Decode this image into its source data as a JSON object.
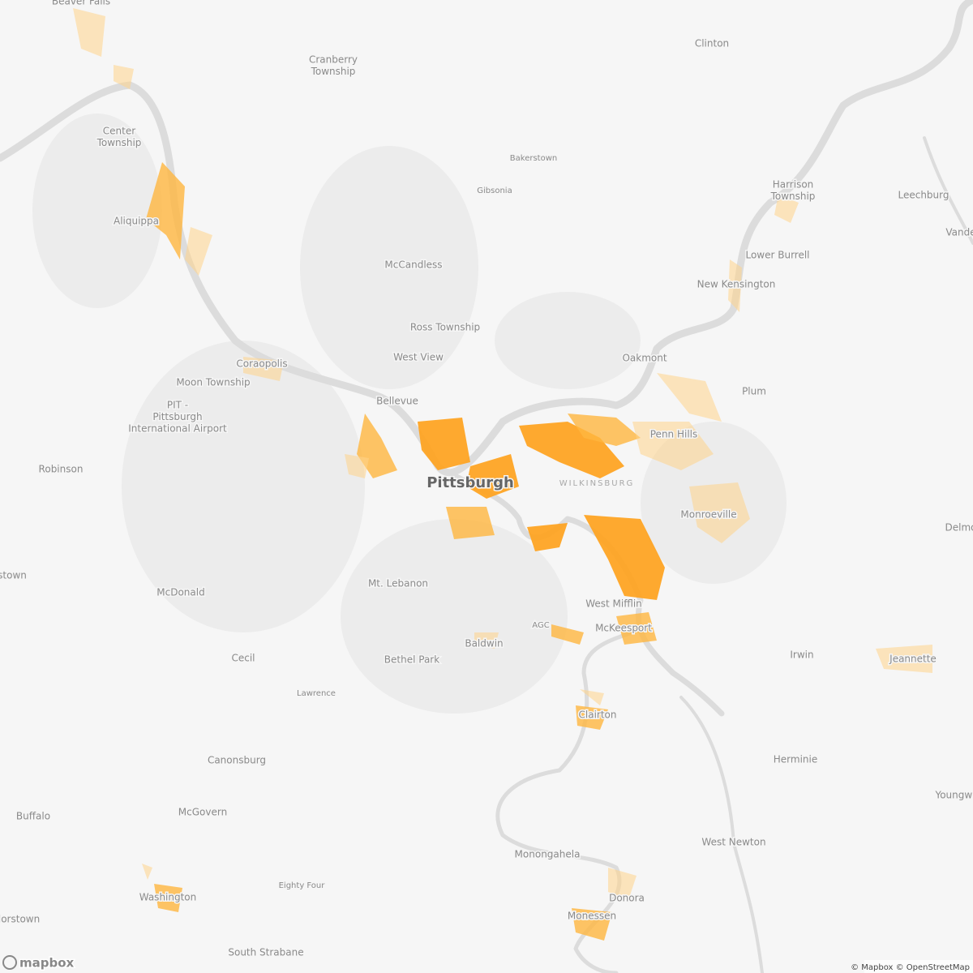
{
  "places": [
    [
      "Beaver Falls"
    ],
    [
      "Cranberry",
      "Township"
    ],
    [
      "Clinton"
    ],
    [
      "Center",
      "Township"
    ],
    [
      "Bakerstown"
    ],
    [
      "Gibsonia"
    ],
    [
      "Harrison",
      "Township"
    ],
    [
      "Leechburg"
    ],
    [
      "Aliquippa"
    ],
    [
      "Vande"
    ],
    [
      "McCandless"
    ],
    [
      "Lower Burrell"
    ],
    [
      "New Kensington"
    ],
    [
      "Ross Township"
    ],
    [
      "West View"
    ],
    [
      "Oakmont"
    ],
    [
      "Coraopolis"
    ],
    [
      "Moon Township"
    ],
    [
      "Plum"
    ],
    [
      "Bellevue"
    ],
    [
      "PIT -",
      "Pittsburgh",
      "International Airport"
    ],
    [
      "Penn Hills"
    ],
    [
      "Robinson"
    ],
    [
      "Pittsburgh"
    ],
    [
      "WILKINSBURG"
    ],
    [
      "Monroeville"
    ],
    [
      "Delmo"
    ],
    [
      "stown"
    ],
    [
      "Mt. Lebanon"
    ],
    [
      "McDonald"
    ],
    [
      "West Mifflin"
    ],
    [
      "AGC"
    ],
    [
      "McKeesport"
    ],
    [
      "Baldwin"
    ],
    [
      "Cecil"
    ],
    [
      "Bethel Park"
    ],
    [
      "Irwin"
    ],
    [
      "Jeannette"
    ],
    [
      "Lawrence"
    ],
    [
      "Clairton"
    ],
    [
      "Herminie"
    ],
    [
      "Canonsburg"
    ],
    [
      "Buffalo"
    ],
    [
      "McGovern"
    ],
    [
      "Youngwo"
    ],
    [
      "Monongahela"
    ],
    [
      "West Newton"
    ],
    [
      "Eighty Four"
    ],
    [
      "Donora"
    ],
    [
      "Washington"
    ],
    [
      "Monessen"
    ],
    [
      "ylorstown"
    ],
    [
      "South Strabane"
    ]
  ],
  "attribution": "© Mapbox © OpenStreetMap",
  "logo": "mapbox"
}
